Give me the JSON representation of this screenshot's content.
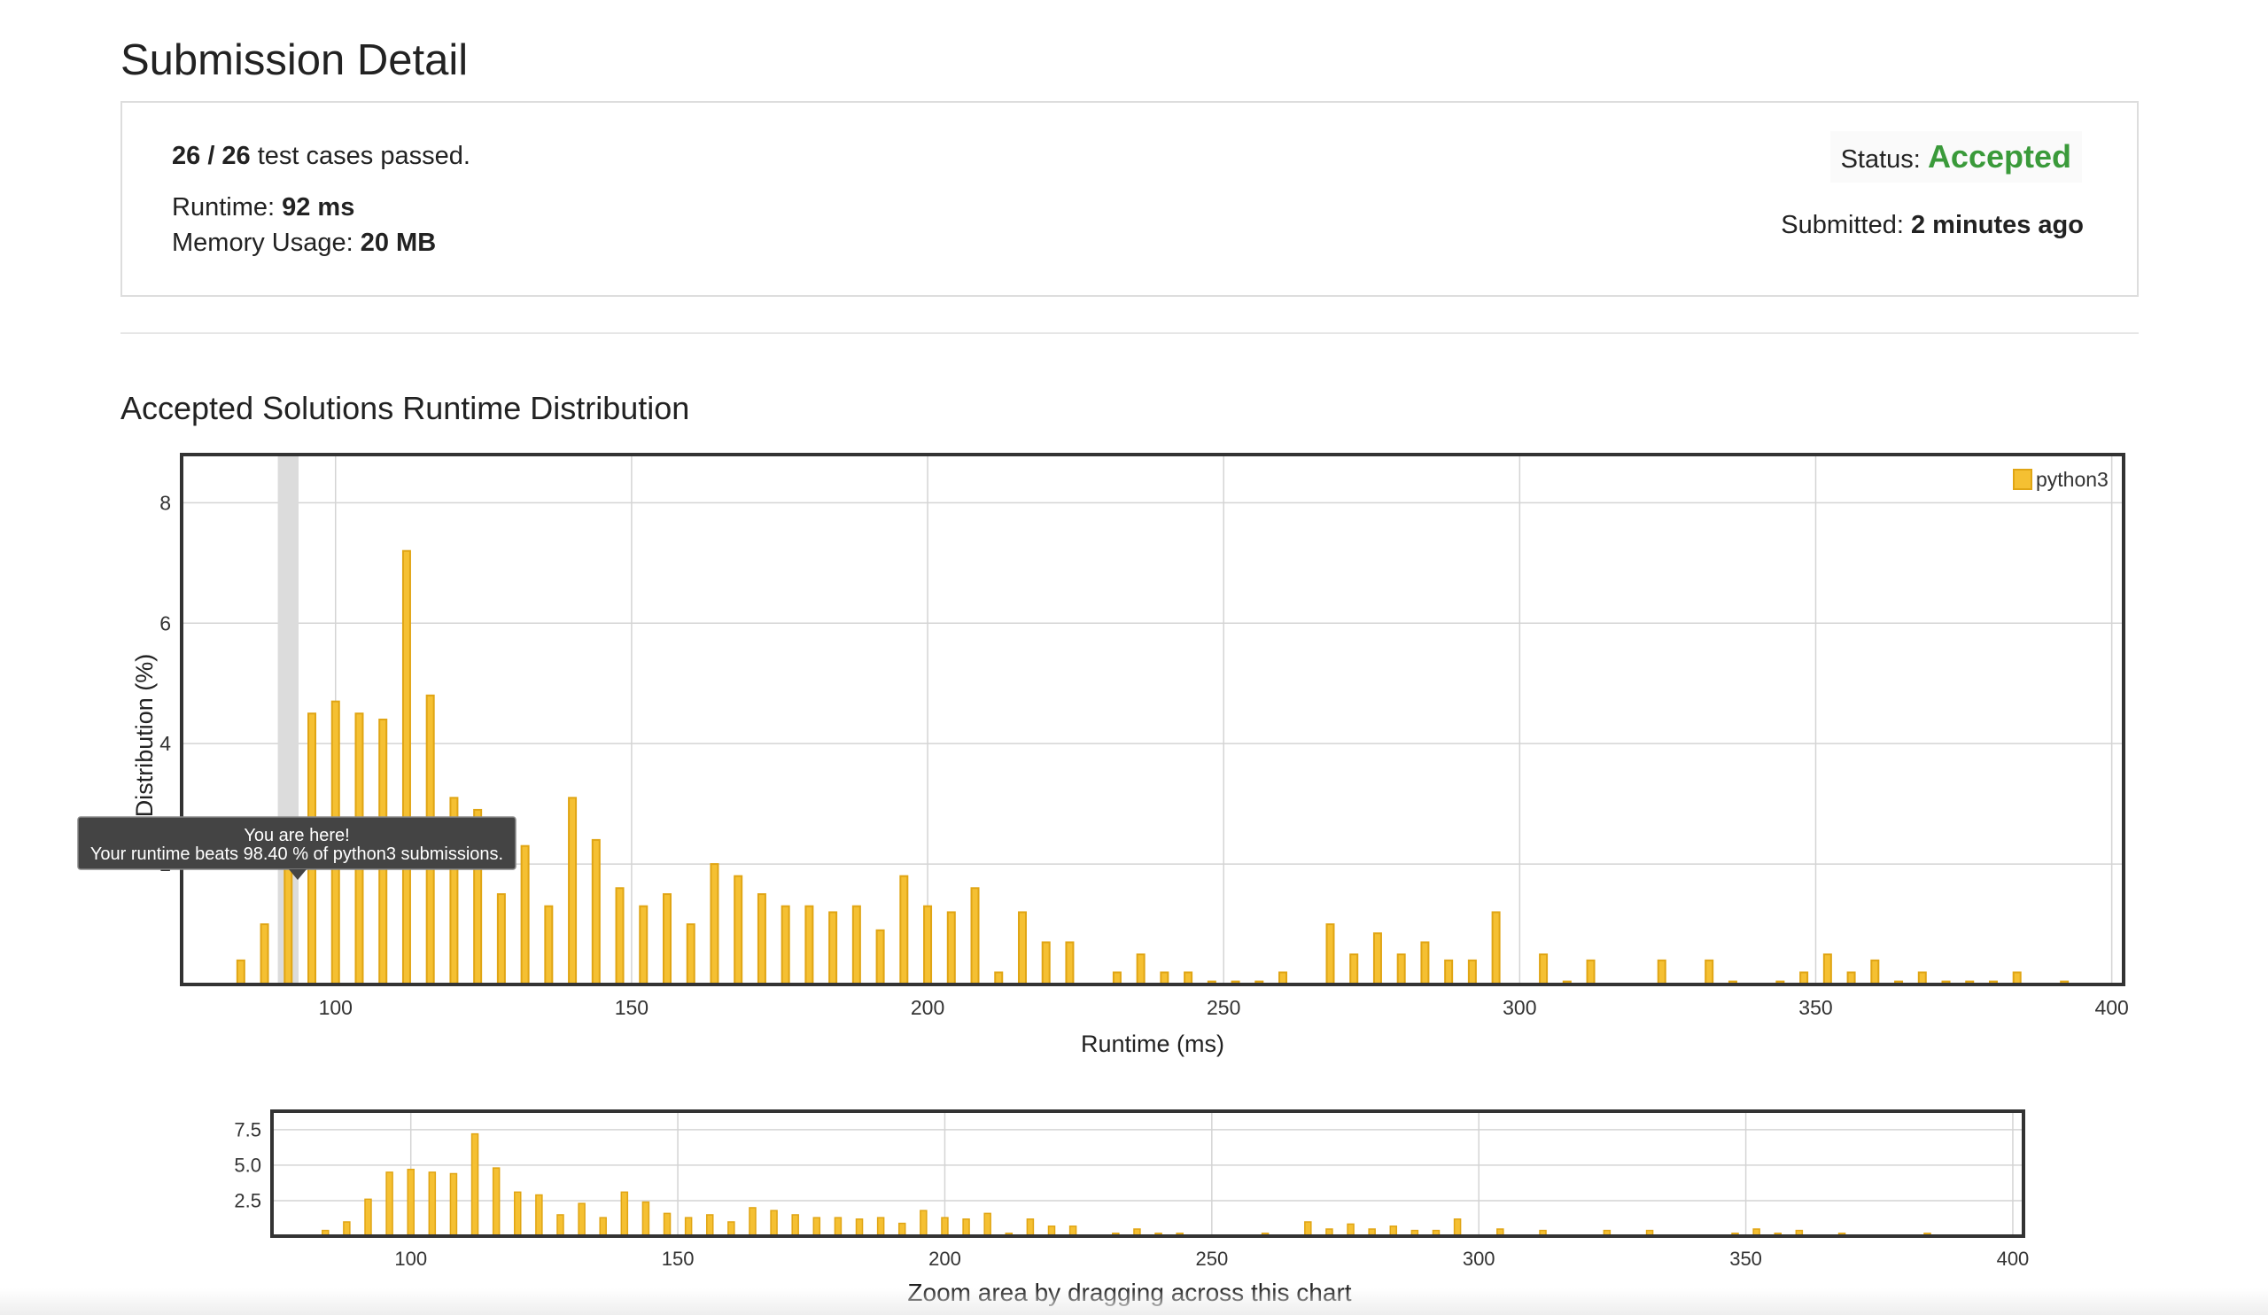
{
  "page": {
    "title": "Submission Detail"
  },
  "summary": {
    "tests_passed": "26 / 26",
    "tests_suffix": "test cases passed.",
    "runtime_label": "Runtime:",
    "runtime_value": "92 ms",
    "memory_label": "Memory Usage:",
    "memory_value": "20 MB",
    "status_label": "Status:",
    "status_value": "Accepted",
    "submitted_label": "Submitted:",
    "submitted_value": "2 minutes ago",
    "status_color": "#3a9a3a"
  },
  "section": {
    "title": "Accepted Solutions Runtime Distribution"
  },
  "tooltip": {
    "line1": "You are here!",
    "line2": "Your runtime beats 98.40 % of python3 submissions."
  },
  "navigator": {
    "caption": "Zoom area by dragging across this chart"
  },
  "colors": {
    "bar_fill": "#f5c032",
    "bar_stroke": "#e0a514",
    "grid": "#d4d4d4",
    "highlight": "#dcdcdc",
    "tooltip_bg": "#444444"
  },
  "chart_data": {
    "type": "bar",
    "xlabel": "Runtime (ms)",
    "ylabel": "Distribution (%)",
    "xlim": [
      74,
      402
    ],
    "ylim": [
      0,
      8.8
    ],
    "xticks": [
      100,
      150,
      200,
      250,
      300,
      350,
      400
    ],
    "yticks": [
      2,
      4,
      6,
      8
    ],
    "nav_ylim": [
      0,
      8.8
    ],
    "nav_yticks": [
      "2.5",
      "5.0",
      "7.5"
    ],
    "nav_ytick_values": [
      2.5,
      5.0,
      7.5
    ],
    "highlight_x": 92,
    "legend_position": "top-right",
    "series": [
      {
        "name": "python3",
        "x": [
          84,
          88,
          92,
          96,
          100,
          104,
          108,
          112,
          116,
          120,
          124,
          128,
          132,
          136,
          140,
          144,
          148,
          152,
          156,
          160,
          164,
          168,
          172,
          176,
          180,
          184,
          188,
          192,
          196,
          200,
          204,
          208,
          212,
          216,
          220,
          224,
          228,
          232,
          236,
          240,
          244,
          248,
          252,
          256,
          260,
          264,
          268,
          272,
          276,
          280,
          284,
          288,
          292,
          296,
          300,
          304,
          308,
          312,
          316,
          320,
          324,
          328,
          332,
          336,
          340,
          344,
          348,
          352,
          356,
          360,
          364,
          368,
          372,
          376,
          380,
          384,
          388,
          392
        ],
        "values": [
          0.4,
          1.0,
          2.6,
          4.5,
          4.7,
          4.5,
          4.4,
          7.2,
          4.8,
          3.1,
          2.9,
          1.5,
          2.3,
          1.3,
          3.1,
          2.4,
          1.6,
          1.3,
          1.5,
          1.0,
          2.0,
          1.8,
          1.5,
          1.3,
          1.3,
          1.2,
          1.3,
          0.9,
          1.8,
          1.3,
          1.2,
          1.6,
          0.2,
          1.2,
          0.7,
          0.7,
          0.0,
          0.2,
          0.5,
          0.2,
          0.2,
          0.05,
          0.05,
          0.05,
          0.2,
          0.0,
          1.0,
          0.5,
          0.85,
          0.5,
          0.7,
          0.4,
          0.4,
          1.2,
          0.0,
          0.5,
          0.05,
          0.4,
          0.0,
          0.0,
          0.4,
          0.0,
          0.4,
          0.05,
          0.0,
          0.05,
          0.2,
          0.5,
          0.2,
          0.4,
          0.05,
          0.2,
          0.05,
          0.05,
          0.05,
          0.2,
          0.0,
          0.05
        ]
      }
    ]
  }
}
